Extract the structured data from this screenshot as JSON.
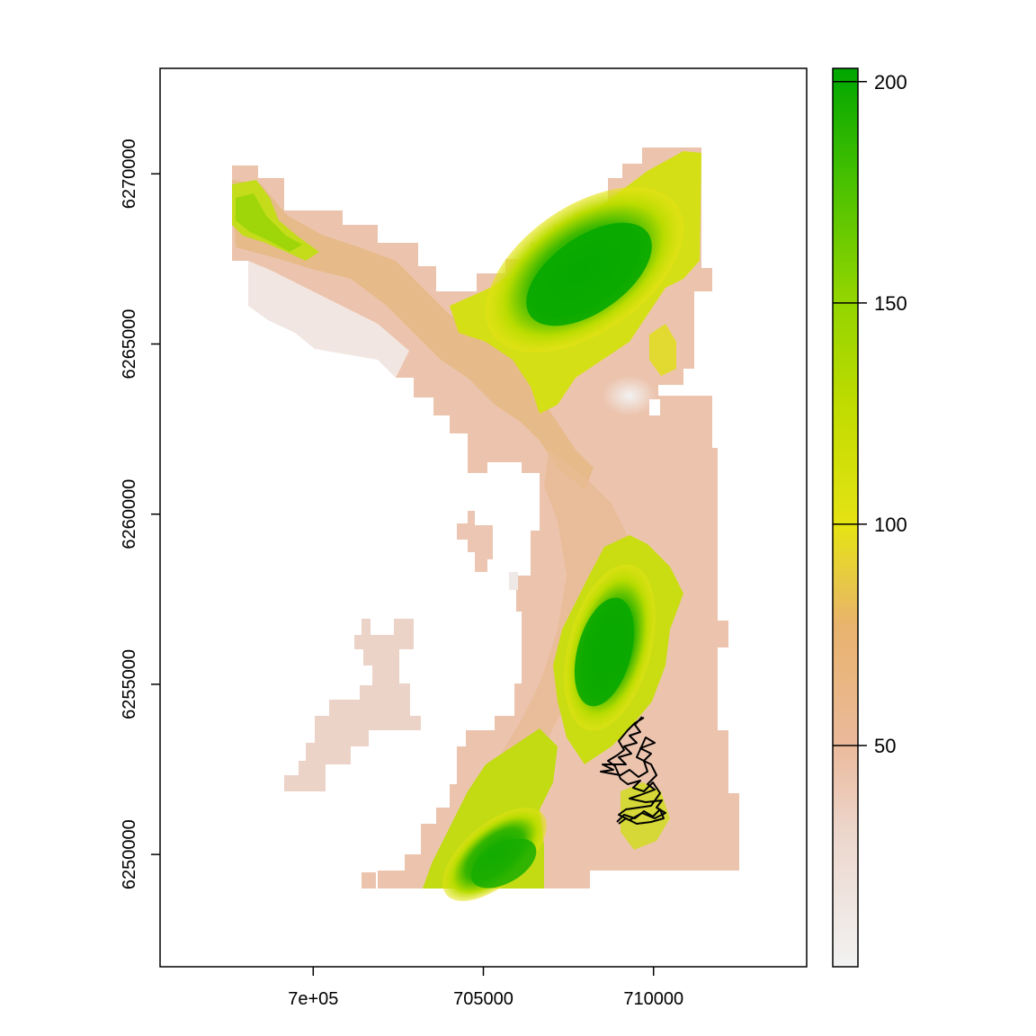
{
  "plot": {
    "x_ticks": [
      {
        "value": 700000,
        "label": "7e+05"
      },
      {
        "value": 705000,
        "label": "705000"
      },
      {
        "value": 710000,
        "label": "710000"
      }
    ],
    "y_ticks": [
      {
        "value": 6250000,
        "label": "6250000"
      },
      {
        "value": 6255000,
        "label": "6255000"
      },
      {
        "value": 6260000,
        "label": "6260000"
      },
      {
        "value": 6265000,
        "label": "6265000"
      },
      {
        "value": 6270000,
        "label": "6270000"
      }
    ],
    "x_range": [
      695500,
      714500
    ],
    "y_range": [
      6246700,
      6273100
    ]
  },
  "legend": {
    "range": [
      0,
      203
    ],
    "ticks": [
      {
        "value": 50,
        "label": "50"
      },
      {
        "value": 100,
        "label": "100"
      },
      {
        "value": 150,
        "label": "150"
      },
      {
        "value": 200,
        "label": "200"
      }
    ],
    "colors": {
      "low": "#f2f2f2",
      "salmon": "#ebb99a",
      "orange": "#e8b36d",
      "yellow": "#e6e314",
      "lightgreen": "#8fd400",
      "green": "#00a600"
    }
  },
  "chart_data": {
    "type": "heatmap",
    "description_units": "elevation raster with track overlay",
    "value_range": [
      0,
      203
    ]
  }
}
